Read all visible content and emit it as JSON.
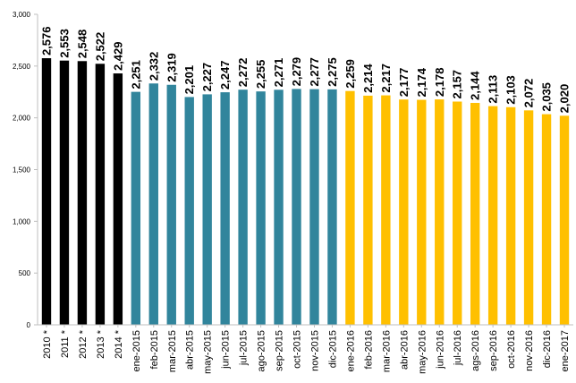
{
  "chart_data": {
    "type": "bar",
    "title": "",
    "xlabel": "",
    "ylabel": "",
    "ylim": [
      0,
      3000
    ],
    "yticks": [
      "0",
      "500",
      "1,000",
      "1,500",
      "2,000",
      "2,500",
      "3,000"
    ],
    "grid": false,
    "legend": "none",
    "categories": [
      "2010 *",
      "2011 *",
      "2012 *",
      "2013 *",
      "2014 *",
      "ene-2015",
      "feb-2015",
      "mar-2015",
      "abr-2015",
      "may-2015",
      "jun-2015",
      "jul-2015",
      "ago-2015",
      "sep-2015",
      "oct-2015",
      "nov-2015",
      "dic-2015",
      "ene-2016",
      "feb-2016",
      "mar-2016",
      "abr-2016",
      "may-2016",
      "jun-2016",
      "jul-2016",
      "ags-2016",
      "sep-2016",
      "oct-2016",
      "nov-2016",
      "dic-2016",
      "ene-2017"
    ],
    "values": [
      2576,
      2553,
      2548,
      2522,
      2429,
      2251,
      2332,
      2319,
      2201,
      2227,
      2247,
      2272,
      2255,
      2271,
      2279,
      2277,
      2275,
      2259,
      2214,
      2217,
      2177,
      2174,
      2178,
      2157,
      2144,
      2113,
      2103,
      2072,
      2035,
      2020
    ],
    "labels": [
      "2,576",
      "2,553",
      "2,548",
      "2,522",
      "2,429",
      "2,251",
      "2,332",
      "2,319",
      "2,201",
      "2,227",
      "2,247",
      "2,272",
      "2,255",
      "2,271",
      "2,279",
      "2,277",
      "2,275",
      "2,259",
      "2,214",
      "2,217",
      "2,177",
      "2,174",
      "2,178",
      "2,157",
      "2,144",
      "2,113",
      "2,103",
      "2,072",
      "2,035",
      "2,020"
    ],
    "groups": [
      {
        "from": 0,
        "to": 4,
        "color": "#000000"
      },
      {
        "from": 5,
        "to": 16,
        "color": "#31859c"
      },
      {
        "from": 17,
        "to": 29,
        "color": "#ffc000"
      }
    ]
  }
}
